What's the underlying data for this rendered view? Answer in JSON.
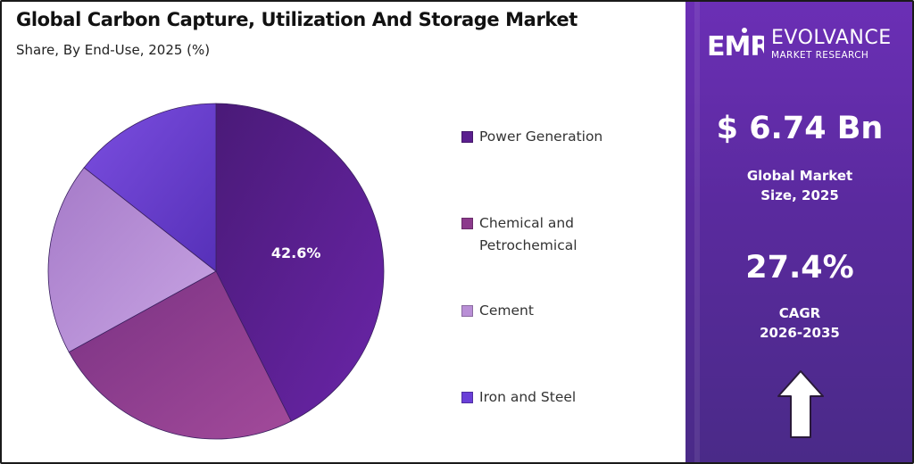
{
  "title": "Global Carbon Capture, Utilization And Storage Market",
  "subtitle": "Share, By End-Use, 2025 (%)",
  "chart_data": {
    "type": "pie",
    "title": "Global Carbon Capture, Utilization And Storage Market",
    "subtitle": "Share, By End-Use, 2025 (%)",
    "categories": [
      "Power Generation",
      "Chemical and Petrochemical",
      "Cement",
      "Iron and Steel"
    ],
    "values": [
      42.6,
      24.4,
      18.6,
      14.4
    ],
    "colors": [
      "#5b1f8f",
      "#8c3a8c",
      "#b98fd6",
      "#6a3fd8"
    ],
    "data_labels": [
      "42.6%",
      "",
      "",
      ""
    ],
    "legend_position": "right"
  },
  "legend": [
    {
      "label_lines": [
        "Power Generation"
      ],
      "color": "#5b1f8f"
    },
    {
      "label_lines": [
        "Chemical and",
        "Petrochemical"
      ],
      "color": "#8c3a8c"
    },
    {
      "label_lines": [
        "Cement"
      ],
      "color": "#b98fd6"
    },
    {
      "label_lines": [
        "Iron and Steel"
      ],
      "color": "#6a3fd8"
    }
  ],
  "sidebar": {
    "brand_mark": "EMR",
    "brand_name": "EVOLVANCE",
    "brand_sub": "MARKET RESEARCH",
    "market_size_value": "$ 6.74 Bn",
    "market_size_label_1": "Global Market",
    "market_size_label_2": "Size, 2025",
    "cagr_value": "27.4%",
    "cagr_label_1": "CAGR",
    "cagr_label_2": "2026-2035",
    "arrow_icon": "up-arrow-icon"
  },
  "colors": {
    "sidebar_bg": "#5a2a9e",
    "text_dark": "#111111"
  }
}
